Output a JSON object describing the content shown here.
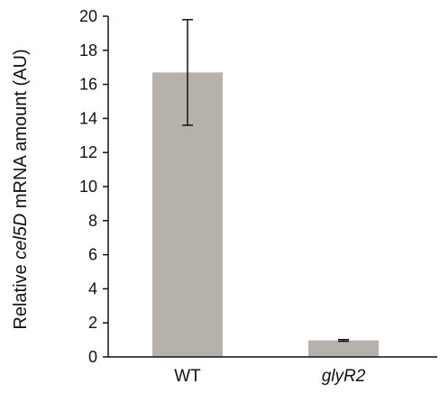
{
  "chart_data": {
    "type": "bar",
    "categories": [
      "WT",
      "glyR2"
    ],
    "category_italic": [
      false,
      true
    ],
    "values": [
      16.7,
      0.97
    ],
    "error": [
      3.1,
      0.05
    ],
    "ylim": [
      0,
      20
    ],
    "yticks": [
      0,
      2,
      4,
      6,
      8,
      10,
      12,
      14,
      16,
      18,
      20
    ],
    "ylabel": {
      "prefix": "Relative ",
      "italic": "cel5D",
      "suffix": " mRNA amount (AU)"
    },
    "xlabel": "",
    "title": "",
    "grid": false,
    "bar_color": "#b7b1ac",
    "axis_color": "#111111"
  }
}
